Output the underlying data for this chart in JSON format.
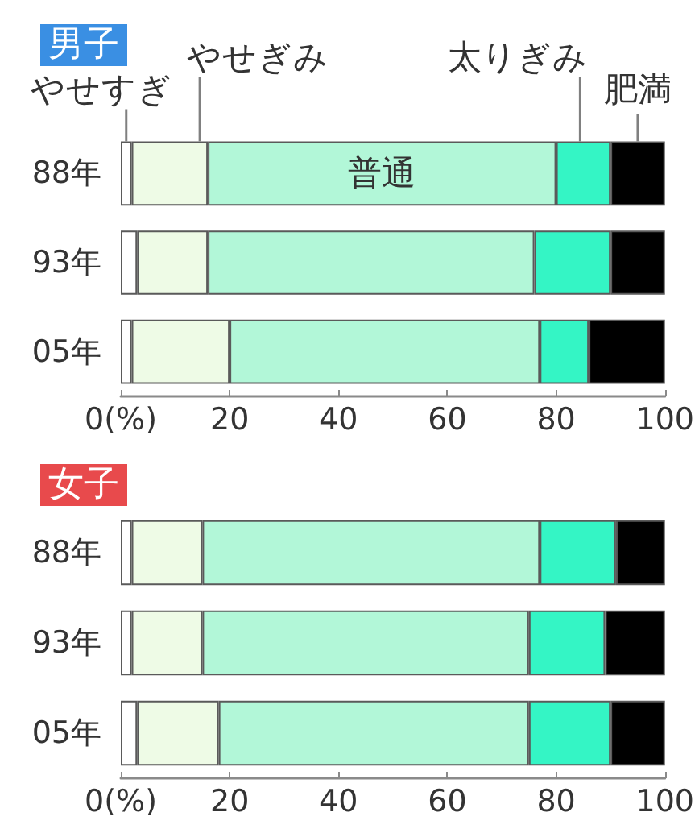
{
  "chart_data": [
    {
      "type": "bar",
      "orientation": "horizontal",
      "stacked": true,
      "title": "男子",
      "categories": [
        "88年",
        "93年",
        "05年"
      ],
      "series": [
        {
          "name": "やせすぎ",
          "color": "#ffffff",
          "values": [
            2,
            3,
            2
          ]
        },
        {
          "name": "やせぎみ",
          "color": "#eefbe6",
          "values": [
            14,
            13,
            18
          ]
        },
        {
          "name": "普通",
          "color": "#b2f7d8",
          "values": [
            64,
            60,
            57
          ]
        },
        {
          "name": "太りぎみ",
          "color": "#34f5c5",
          "values": [
            10,
            14,
            9
          ]
        },
        {
          "name": "肥満",
          "color": "#000000",
          "values": [
            10,
            10,
            14
          ]
        }
      ],
      "xlim": [
        0,
        100
      ],
      "xticks": [
        {
          "value": 0,
          "label": "0(%)"
        },
        20,
        40,
        60,
        80,
        100
      ]
    },
    {
      "type": "bar",
      "orientation": "horizontal",
      "stacked": true,
      "title": "女子",
      "categories": [
        "88年",
        "93年",
        "05年"
      ],
      "series": [
        {
          "color": "#ffffff",
          "values": [
            2,
            2,
            3
          ]
        },
        {
          "color": "#eefbe6",
          "values": [
            13,
            13,
            15
          ]
        },
        {
          "color": "#b2f7d8",
          "values": [
            62,
            60,
            57
          ]
        },
        {
          "color": "#34f5c5",
          "values": [
            14,
            14,
            15
          ]
        },
        {
          "color": "#000000",
          "values": [
            9,
            11,
            10
          ]
        }
      ],
      "xlim": [
        0,
        100
      ],
      "xticks": [
        {
          "value": 0,
          "label": "0(%)"
        },
        20,
        40,
        60,
        80,
        100
      ]
    }
  ]
}
